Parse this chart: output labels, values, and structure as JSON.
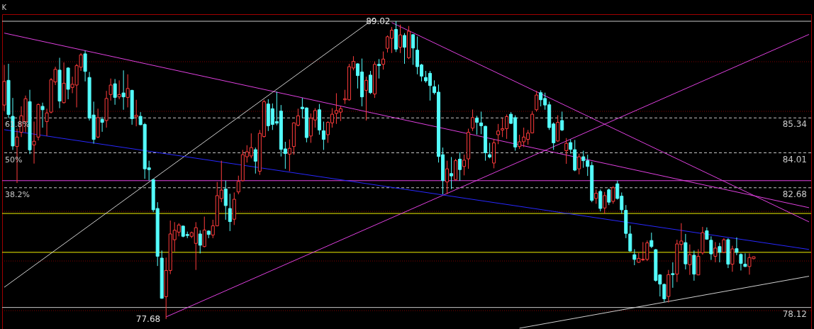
{
  "chart_data": {
    "type": "candlestick",
    "title": "K",
    "categories": [
      null,
      null,
      null,
      null,
      null,
      null,
      null,
      null,
      null,
      null,
      null,
      null,
      null,
      null,
      null,
      null,
      null,
      null,
      null,
      null,
      null,
      null,
      null,
      null,
      null,
      null,
      null,
      null,
      null,
      null,
      null,
      null,
      null,
      null,
      null,
      null,
      null,
      null,
      null,
      null,
      null,
      null,
      null,
      null,
      null,
      null,
      null,
      null,
      null,
      null,
      null,
      null,
      null,
      null,
      null,
      null,
      null,
      null,
      null,
      null,
      null,
      null,
      null,
      null,
      null,
      null,
      null,
      null,
      null,
      null,
      null,
      null,
      null,
      null,
      null,
      null,
      null,
      null,
      null,
      null,
      null,
      null,
      null,
      null,
      null,
      null,
      null,
      null,
      null,
      null,
      null,
      null,
      null,
      null,
      null,
      null,
      null,
      null,
      null,
      null,
      null,
      null,
      null,
      null,
      null,
      null,
      null,
      null,
      null,
      null,
      null,
      null,
      null,
      null,
      null,
      null,
      null,
      null,
      null,
      null,
      null,
      null,
      null,
      null,
      null,
      null,
      null,
      null,
      null,
      null,
      null,
      null,
      null,
      null,
      null,
      null,
      null,
      null,
      null,
      null,
      null,
      null,
      null,
      null,
      null,
      null,
      null,
      null,
      null,
      null,
      null,
      null,
      null,
      null,
      null,
      null,
      null,
      null,
      null,
      null,
      null,
      null,
      null,
      null,
      null,
      null,
      null,
      null,
      null,
      null,
      null,
      null,
      null,
      null,
      null,
      null,
      null,
      null,
      null,
      null,
      null,
      null,
      null,
      null,
      null,
      null,
      null,
      null,
      null,
      null
    ],
    "ylim": [
      77.3,
      89.29
    ],
    "ohlc": [
      [
        85.83,
        87.36,
        85.6,
        86.73
      ],
      [
        86.77,
        87.4,
        85.33,
        85.47
      ],
      [
        85.4,
        86.1,
        84.12,
        84.27
      ],
      [
        84.25,
        84.93,
        82.86,
        84.61
      ],
      [
        84.79,
        85.78,
        84.61,
        85.42
      ],
      [
        85.2,
        86.19,
        84.79,
        86.07
      ],
      [
        85.96,
        86.41,
        83.96,
        84.12
      ],
      [
        84.31,
        85.2,
        83.6,
        84.45
      ],
      [
        84.61,
        85.89,
        84.48,
        85.85
      ],
      [
        85.78,
        85.92,
        84.97,
        85.65
      ],
      [
        85.2,
        85.69,
        84.65,
        85.53
      ],
      [
        85.56,
        86.86,
        85.51,
        86.79
      ],
      [
        86.71,
        87.29,
        86.59,
        87.19
      ],
      [
        87.16,
        87.63,
        85.71,
        85.98
      ],
      [
        85.92,
        87.45,
        85.89,
        86.66
      ],
      [
        87.24,
        87.27,
        86.05,
        86.43
      ],
      [
        86.5,
        86.91,
        86.28,
        86.62
      ],
      [
        86.59,
        87.4,
        85.74,
        87.33
      ],
      [
        87.27,
        87.81,
        87.13,
        87.74
      ],
      [
        87.78,
        87.9,
        86.73,
        87.11
      ],
      [
        86.88,
        87.09,
        85.24,
        85.33
      ],
      [
        85.45,
        85.96,
        84.36,
        84.52
      ],
      [
        84.61,
        85.69,
        84.57,
        85.35
      ],
      [
        85.29,
        85.38,
        84.81,
        85.17
      ],
      [
        85.24,
        86.37,
        84.97,
        86.08
      ],
      [
        86.23,
        86.84,
        86.0,
        86.59
      ],
      [
        86.64,
        86.82,
        85.84,
        86.12
      ],
      [
        86.14,
        86.77,
        86.05,
        86.23
      ],
      [
        86.29,
        87.15,
        85.65,
        86.14
      ],
      [
        86.12,
        87.0,
        85.74,
        86.46
      ],
      [
        86.39,
        86.41,
        85.08,
        85.31
      ],
      [
        85.38,
        86.03,
        85.02,
        85.44
      ],
      [
        85.4,
        85.56,
        85.06,
        85.08
      ],
      [
        85.09,
        85.15,
        83.02,
        83.4
      ],
      [
        83.44,
        83.71,
        82.95,
        83.37
      ],
      [
        82.99,
        83.01,
        81.75,
        81.84
      ],
      [
        81.89,
        82.13,
        79.7,
        80.07
      ],
      [
        80.0,
        80.29,
        78.45,
        78.47
      ],
      [
        78.53,
        80.02,
        77.68,
        79.53
      ],
      [
        79.53,
        81.43,
        79.39,
        80.92
      ],
      [
        80.7,
        81.37,
        80.25,
        81.06
      ],
      [
        80.99,
        81.33,
        80.83,
        81.26
      ],
      [
        81.22,
        81.24,
        80.79,
        80.83
      ],
      [
        80.9,
        81.01,
        80.76,
        80.86
      ],
      [
        80.83,
        81.01,
        80.76,
        80.97
      ],
      [
        80.56,
        81.37,
        79.55,
        81.16
      ],
      [
        80.92,
        81.06,
        80.18,
        80.49
      ],
      [
        80.44,
        81.58,
        80.41,
        81.07
      ],
      [
        81.03,
        81.06,
        80.76,
        80.9
      ],
      [
        80.88,
        81.46,
        80.76,
        81.23
      ],
      [
        81.23,
        82.9,
        81.21,
        82.38
      ],
      [
        82.27,
        83.71,
        82.13,
        82.59
      ],
      [
        82.63,
        82.95,
        81.46,
        82.0
      ],
      [
        81.89,
        82.45,
        81.03,
        81.39
      ],
      [
        81.48,
        82.5,
        81.26,
        82.24
      ],
      [
        82.52,
        83.14,
        82.43,
        82.92
      ],
      [
        82.95,
        84.12,
        82.92,
        83.94
      ],
      [
        83.86,
        84.3,
        83.64,
        84.05
      ],
      [
        83.89,
        84.75,
        83.8,
        84.21
      ],
      [
        84.13,
        84.21,
        83.22,
        83.69
      ],
      [
        83.31,
        84.88,
        83.17,
        84.75
      ],
      [
        84.63,
        86.03,
        84.59,
        85.96
      ],
      [
        85.87,
        86.05,
        84.84,
        85.04
      ],
      [
        85.69,
        85.89,
        84.88,
        85.09
      ],
      [
        85.2,
        86.34,
        85.06,
        85.14
      ],
      [
        85.6,
        85.83,
        83.87,
        84.14
      ],
      [
        84.16,
        84.43,
        83.4,
        83.98
      ],
      [
        83.96,
        84.52,
        83.31,
        84.18
      ],
      [
        84.25,
        85.17,
        83.94,
        85.15
      ],
      [
        85.06,
        85.69,
        85.02,
        85.42
      ],
      [
        85.75,
        86.1,
        85.33,
        85.69
      ],
      [
        85.72,
        85.74,
        84.41,
        84.59
      ],
      [
        84.65,
        85.51,
        84.39,
        85.33
      ],
      [
        85.26,
        85.71,
        84.97,
        85.62
      ],
      [
        85.65,
        85.87,
        84.7,
        84.88
      ],
      [
        84.85,
        85.2,
        84.12,
        84.52
      ],
      [
        84.7,
        85.21,
        84.39,
        85.17
      ],
      [
        85.15,
        85.71,
        84.97,
        85.48
      ],
      [
        85.51,
        86.28,
        85.11,
        85.62
      ],
      [
        85.56,
        85.78,
        85.22,
        85.69
      ],
      [
        86.03,
        86.41,
        85.87,
        86.07
      ],
      [
        86.03,
        87.4,
        86.0,
        87.29
      ],
      [
        87.24,
        87.69,
        87.15,
        87.49
      ],
      [
        87.4,
        87.42,
        86.46,
        86.95
      ],
      [
        87.09,
        87.6,
        85.78,
        86.14
      ],
      [
        86.39,
        86.91,
        85.24,
        86.77
      ],
      [
        86.97,
        87.13,
        86.25,
        86.3
      ],
      [
        86.25,
        87.49,
        86.1,
        87.38
      ],
      [
        87.38,
        87.58,
        86.84,
        87.33
      ],
      [
        87.38,
        87.87,
        87.18,
        87.58
      ],
      [
        87.99,
        88.48,
        87.83,
        88.43
      ],
      [
        88.37,
        88.8,
        87.81,
        88.68
      ],
      [
        88.71,
        89.02,
        87.85,
        87.96
      ],
      [
        88.03,
        88.89,
        87.81,
        88.5
      ],
      [
        88.48,
        88.57,
        87.4,
        88.03
      ],
      [
        87.63,
        88.84,
        87.58,
        88.64
      ],
      [
        88.51,
        88.53,
        87.36,
        88.0
      ],
      [
        87.92,
        88.44,
        87.0,
        87.29
      ],
      [
        87.36,
        87.4,
        86.73,
        86.93
      ],
      [
        86.88,
        87.13,
        86.68,
        86.75
      ],
      [
        87.04,
        87.13,
        86.0,
        86.57
      ],
      [
        86.53,
        86.77,
        86.23,
        86.3
      ],
      [
        86.32,
        86.61,
        83.64,
        83.87
      ],
      [
        83.94,
        84.21,
        82.43,
        82.95
      ],
      [
        82.9,
        83.71,
        82.45,
        83.4
      ],
      [
        83.22,
        83.85,
        82.63,
        83.13
      ],
      [
        82.99,
        83.78,
        82.95,
        83.71
      ],
      [
        83.77,
        84.03,
        82.95,
        83.37
      ],
      [
        83.49,
        83.94,
        83.15,
        83.73
      ],
      [
        83.78,
        84.93,
        83.4,
        84.79
      ],
      [
        84.95,
        85.66,
        84.84,
        85.35
      ],
      [
        85.33,
        85.42,
        84.7,
        85.17
      ],
      [
        85.15,
        85.58,
        84.72,
        85.04
      ],
      [
        85.02,
        85.04,
        83.71,
        84.01
      ],
      [
        83.94,
        84.39,
        83.8,
        83.85
      ],
      [
        83.62,
        84.54,
        83.42,
        84.39
      ],
      [
        84.7,
        85.11,
        84.34,
        84.84
      ],
      [
        84.88,
        85.33,
        84.61,
        84.93
      ],
      [
        84.93,
        85.47,
        84.54,
        85.39
      ],
      [
        85.48,
        85.56,
        85.11,
        85.13
      ],
      [
        85.35,
        85.44,
        84.09,
        84.23
      ],
      [
        84.25,
        84.7,
        84.16,
        84.43
      ],
      [
        84.43,
        84.97,
        84.23,
        84.61
      ],
      [
        84.52,
        84.88,
        84.32,
        84.76
      ],
      [
        84.77,
        85.6,
        84.75,
        85.48
      ],
      [
        85.65,
        86.37,
        85.58,
        86.21
      ],
      [
        86.3,
        86.39,
        85.78,
        86.03
      ],
      [
        86.08,
        86.3,
        85.65,
        85.83
      ],
      [
        85.84,
        85.96,
        84.88,
        84.97
      ],
      [
        85.11,
        85.17,
        84.12,
        84.39
      ],
      [
        84.46,
        85.44,
        84.43,
        85.17
      ],
      [
        85.24,
        85.58,
        84.84,
        84.88
      ],
      [
        84.09,
        84.57,
        83.59,
        84.37
      ],
      [
        84.4,
        84.52,
        83.98,
        84.14
      ],
      [
        84.13,
        84.5,
        83.31,
        83.35
      ],
      [
        83.4,
        83.98,
        83.19,
        83.86
      ],
      [
        83.86,
        84.09,
        83.44,
        83.71
      ],
      [
        83.71,
        83.94,
        83.13,
        83.49
      ],
      [
        83.53,
        83.67,
        82.13,
        82.2
      ],
      [
        82.27,
        82.61,
        82.07,
        82.47
      ],
      [
        82.54,
        82.61,
        81.78,
        81.89
      ],
      [
        81.91,
        82.52,
        81.69,
        82.38
      ],
      [
        82.6,
        82.65,
        82.02,
        82.13
      ],
      [
        82.16,
        82.74,
        82.07,
        82.68
      ],
      [
        82.83,
        82.95,
        82.23,
        82.27
      ],
      [
        82.36,
        82.5,
        81.69,
        81.84
      ],
      [
        81.82,
        82.02,
        80.76,
        80.94
      ],
      [
        80.92,
        81.24,
        80.25,
        80.27
      ],
      [
        80.13,
        80.34,
        79.73,
        79.95
      ],
      [
        79.84,
        80.2,
        79.82,
        79.99
      ],
      [
        79.93,
        80.61,
        79.89,
        79.96
      ],
      [
        79.95,
        80.67,
        79.89,
        80.58
      ],
      [
        80.67,
        80.97,
        80.38,
        80.44
      ],
      [
        80.32,
        80.35,
        79.1,
        79.15
      ],
      [
        79.36,
        79.39,
        78.54,
        79.01
      ],
      [
        79.0,
        79.03,
        78.33,
        78.45
      ],
      [
        78.54,
        79.55,
        78.31,
        79.37
      ],
      [
        79.41,
        79.84,
        78.87,
        79.37
      ],
      [
        79.39,
        80.7,
        79.09,
        80.54
      ],
      [
        80.52,
        81.33,
        80.29,
        80.65
      ],
      [
        80.59,
        80.92,
        79.57,
        79.78
      ],
      [
        79.75,
        80.52,
        79.36,
        80.13
      ],
      [
        80.11,
        80.29,
        79.14,
        79.39
      ],
      [
        79.36,
        80.34,
        79.35,
        80.07
      ],
      [
        80.2,
        81.19,
        80.13,
        80.97
      ],
      [
        81.04,
        81.17,
        80.7,
        80.72
      ],
      [
        80.68,
        80.83,
        79.93,
        80.16
      ],
      [
        80.07,
        80.61,
        79.84,
        80.38
      ],
      [
        80.44,
        80.58,
        79.84,
        80.22
      ],
      [
        80.22,
        80.76,
        80.2,
        80.7
      ],
      [
        80.7,
        80.76,
        79.62,
        79.77
      ],
      [
        79.77,
        80.47,
        79.48,
        80.35
      ],
      [
        80.36,
        80.79,
        80.11,
        80.22
      ],
      [
        80.14,
        80.18,
        79.53,
        79.8
      ],
      [
        79.77,
        80.18,
        79.66,
        79.68
      ],
      [
        79.68,
        80.18,
        79.37,
        80.02
      ],
      [
        79.98,
        80.06,
        79.95,
        80.05
      ],
      null,
      null,
      null,
      null,
      null,
      null,
      null,
      null,
      null,
      null,
      null,
      null,
      null
    ],
    "colors": [
      "#ff3c3c",
      "#54fcfc",
      "#54fcfc",
      "#ff3c3c",
      "#ff3c3c",
      "#ff3c3c",
      "#54fcfc",
      "#ff3c3c",
      "#ff3c3c",
      "#54fcfc",
      "#ff3c3c",
      "#ff3c3c",
      "#ff3c3c",
      "#54fcfc",
      "#ff3c3c",
      "#54fcfc",
      "#ff3c3c",
      "#ff3c3c",
      "#ff3c3c",
      "#54fcfc",
      "#54fcfc",
      "#54fcfc",
      "#ff3c3c",
      "#54fcfc",
      "#ff3c3c",
      "#ff3c3c",
      "#54fcfc",
      "#ff3c3c",
      "#54fcfc",
      "#ff3c3c",
      "#54fcfc",
      "#ff3c3c",
      "#54fcfc",
      "#54fcfc",
      "#54fcfc",
      "#54fcfc",
      "#54fcfc",
      "#54fcfc",
      "#ff3c3c",
      "#ff3c3c",
      "#ff3c3c",
      "#ff3c3c",
      "#54fcfc",
      "#54fcfc",
      "#ff3c3c",
      "#ff3c3c",
      "#54fcfc",
      "#ff3c3c",
      "#54fcfc",
      "#ff3c3c",
      "#ff3c3c",
      "#ff3c3c",
      "#54fcfc",
      "#54fcfc",
      "#ff3c3c",
      "#ff3c3c",
      "#ff3c3c",
      "#ff3c3c",
      "#ff3c3c",
      "#54fcfc",
      "#ff3c3c",
      "#ff3c3c",
      "#54fcfc",
      "#54fcfc",
      "#54fcfc",
      "#54fcfc",
      "#54fcfc",
      "#ff3c3c",
      "#ff3c3c",
      "#ff3c3c",
      "#54fcfc",
      "#54fcfc",
      "#ff3c3c",
      "#ff3c3c",
      "#54fcfc",
      "#54fcfc",
      "#ff3c3c",
      "#ff3c3c",
      "#ff3c3c",
      "#ff3c3c",
      "#ff3c3c",
      "#ff3c3c",
      "#ff3c3c",
      "#54fcfc",
      "#54fcfc",
      "#ff3c3c",
      "#54fcfc",
      "#ff3c3c",
      "#54fcfc",
      "#ff3c3c",
      "#ff3c3c",
      "#ff3c3c",
      "#54fcfc",
      "#ff3c3c",
      "#54fcfc",
      "#ff3c3c",
      "#54fcfc",
      "#54fcfc",
      "#54fcfc",
      "#54fcfc",
      "#54fcfc",
      "#54fcfc",
      "#54fcfc",
      "#54fcfc",
      "#ff3c3c",
      "#54fcfc",
      "#ff3c3c",
      "#54fcfc",
      "#ff3c3c",
      "#ff3c3c",
      "#ff3c3c",
      "#54fcfc",
      "#54fcfc",
      "#54fcfc",
      "#54fcfc",
      "#ff3c3c",
      "#ff3c3c",
      "#ff3c3c",
      "#ff3c3c",
      "#54fcfc",
      "#54fcfc",
      "#ff3c3c",
      "#ff3c3c",
      "#ff3c3c",
      "#ff3c3c",
      "#ff3c3c",
      "#54fcfc",
      "#54fcfc",
      "#54fcfc",
      "#54fcfc",
      "#ff3c3c",
      "#54fcfc",
      "#ff3c3c",
      "#54fcfc",
      "#54fcfc",
      "#ff3c3c",
      "#54fcfc",
      "#54fcfc",
      "#54fcfc",
      "#ff3c3c",
      "#54fcfc",
      "#ff3c3c",
      "#54fcfc",
      "#ff3c3c",
      "#54fcfc",
      "#54fcfc",
      "#54fcfc",
      "#54fcfc",
      "#54fcfc",
      "#ff3c3c",
      "#ff3c3c",
      "#ff3c3c",
      "#54fcfc",
      "#54fcfc",
      "#54fcfc",
      "#54fcfc",
      "#ff3c3c",
      "#54fcfc",
      "#ff3c3c",
      "#ff3c3c",
      "#54fcfc",
      "#ff3c3c",
      "#54fcfc",
      "#ff3c3c",
      "#ff3c3c",
      "#54fcfc",
      "#54fcfc",
      "#ff3c3c",
      "#54fcfc",
      "#ff3c3c",
      "#54fcfc",
      "#ff3c3c",
      "#54fcfc",
      "#54fcfc",
      "#54fcfc",
      "#ff3c3c",
      "#ff3c3c",
      null,
      null,
      null,
      null,
      null,
      null,
      null,
      null,
      null,
      null,
      null,
      null,
      null
    ],
    "series": [
      {
        "type": "line",
        "color": "#e040e0",
        "values": [
          88.57,
          null,
          null,
          null,
          null,
          null,
          null,
          null,
          null,
          null,
          null,
          null,
          null,
          null,
          null,
          null,
          null,
          null,
          null,
          null,
          null,
          null,
          null,
          null,
          null,
          null,
          null,
          null,
          null,
          null,
          null,
          null,
          null,
          null,
          null,
          null,
          null,
          null,
          null,
          null,
          null,
          null,
          null,
          null,
          null,
          null,
          null,
          null,
          null,
          null,
          null,
          null,
          null,
          null,
          null,
          null,
          null,
          null,
          null,
          null,
          null,
          null,
          null,
          null,
          null,
          null,
          null,
          null,
          null,
          null,
          null,
          null,
          null,
          null,
          null,
          null,
          null,
          null,
          null,
          null,
          null,
          null,
          null,
          null,
          null,
          null,
          null,
          null,
          null,
          null,
          null,
          null,
          null,
          null,
          null,
          null,
          null,
          null,
          null,
          null,
          null,
          null,
          null,
          null,
          null,
          null,
          null,
          null,
          null,
          null,
          null,
          null,
          null,
          null,
          null,
          null,
          null,
          null,
          null,
          null,
          null,
          null,
          null,
          null,
          null,
          null,
          null,
          null,
          null,
          null,
          null,
          null,
          null,
          null,
          null,
          null,
          null,
          null,
          null,
          null,
          null,
          null,
          null,
          null,
          null,
          null,
          null,
          null,
          null,
          null,
          null,
          null,
          null,
          null,
          null,
          null,
          null,
          null,
          null,
          null,
          null,
          null,
          null,
          null,
          null,
          null,
          null,
          null,
          null,
          null,
          null,
          null,
          null,
          null,
          null,
          null,
          null,
          null,
          null,
          null,
          null,
          null,
          null,
          null,
          null,
          null,
          null,
          null,
          null,
          81.92
        ]
      },
      {
        "type": "line",
        "color": "#e040e0",
        "values": [
          null,
          null,
          null,
          null,
          null,
          null,
          null,
          null,
          null,
          null,
          null,
          null,
          null,
          null,
          null,
          null,
          null,
          null,
          null,
          null,
          null,
          null,
          null,
          null,
          null,
          null,
          null,
          null,
          null,
          null,
          null,
          null,
          null,
          null,
          null,
          null,
          null,
          null,
          null,
          null,
          null,
          null,
          null,
          null,
          null,
          null,
          null,
          null,
          null,
          null,
          null,
          null,
          null,
          null,
          null,
          null,
          null,
          null,
          null,
          null,
          null,
          null,
          null,
          null,
          null,
          null,
          null,
          null,
          null,
          null,
          null,
          null,
          null,
          null,
          null,
          null,
          null,
          null,
          null,
          null,
          null,
          null,
          null,
          null,
          null,
          null,
          null,
          null,
          null,
          null,
          null,
          88.97,
          null,
          null,
          null,
          null,
          null,
          null,
          null,
          null,
          null,
          null,
          null,
          null,
          null,
          null,
          null,
          null,
          null,
          null,
          null,
          null,
          null,
          null,
          null,
          null,
          null,
          null,
          null,
          null,
          null,
          null,
          null,
          null,
          null,
          null,
          null,
          null,
          null,
          null,
          null,
          null,
          null,
          null,
          null,
          null,
          null,
          null,
          null,
          null,
          null,
          null,
          null,
          null,
          null,
          null,
          null,
          null,
          null,
          null,
          null,
          null,
          null,
          null,
          null,
          null,
          null,
          null,
          null,
          null,
          null,
          null,
          null,
          null,
          null,
          null,
          null,
          null,
          null,
          null,
          null,
          null,
          null,
          null,
          null,
          null,
          null,
          null,
          null,
          null,
          null,
          null,
          null,
          null,
          null,
          null,
          null,
          null,
          null,
          81.38
        ]
      },
      {
        "type": "line",
        "color": "#e040e0",
        "values": [
          null,
          null,
          null,
          null,
          null,
          null,
          null,
          null,
          null,
          null,
          null,
          null,
          null,
          null,
          null,
          null,
          null,
          null,
          null,
          null,
          null,
          null,
          null,
          null,
          null,
          null,
          null,
          null,
          null,
          null,
          null,
          null,
          null,
          null,
          null,
          null,
          null,
          null,
          77.76,
          null,
          null,
          null,
          null,
          null,
          null,
          null,
          null,
          null,
          null,
          null,
          null,
          null,
          null,
          null,
          null,
          null,
          null,
          null,
          null,
          null,
          null,
          null,
          null,
          null,
          null,
          null,
          null,
          null,
          null,
          null,
          null,
          null,
          null,
          null,
          null,
          null,
          null,
          null,
          null,
          null,
          null,
          null,
          null,
          null,
          null,
          null,
          null,
          null,
          null,
          null,
          null,
          null,
          null,
          null,
          null,
          null,
          null,
          null,
          null,
          null,
          null,
          null,
          null,
          null,
          null,
          null,
          null,
          null,
          null,
          null,
          null,
          null,
          null,
          null,
          null,
          null,
          null,
          null,
          null,
          null,
          null,
          null,
          null,
          null,
          null,
          null,
          null,
          null,
          null,
          null,
          null,
          null,
          null,
          null,
          null,
          null,
          null,
          null,
          null,
          null,
          null,
          null,
          null,
          null,
          null,
          null,
          null,
          null,
          null,
          null,
          null,
          null,
          null,
          null,
          null,
          null,
          null,
          null,
          null,
          null,
          null,
          null,
          null,
          null,
          null,
          null,
          null,
          null,
          null,
          null,
          null,
          null,
          null,
          null,
          null,
          null,
          null,
          null,
          null,
          null,
          null,
          null,
          null,
          null,
          null,
          null,
          null,
          null,
          null,
          88.52
        ]
      },
      {
        "type": "line",
        "color": "#d0d0d0",
        "values": [
          78.89,
          null,
          null,
          null,
          null,
          null,
          null,
          null,
          null,
          null,
          null,
          null,
          null,
          null,
          null,
          null,
          null,
          null,
          null,
          null,
          null,
          null,
          null,
          null,
          null,
          null,
          null,
          null,
          null,
          null,
          null,
          null,
          null,
          null,
          null,
          null,
          null,
          null,
          null,
          null,
          null,
          null,
          null,
          null,
          null,
          null,
          null,
          null,
          null,
          null,
          null,
          null,
          null,
          null,
          null,
          null,
          null,
          null,
          null,
          null,
          null,
          null,
          null,
          null,
          null,
          null,
          null,
          null,
          null,
          null,
          null,
          null,
          null,
          null,
          null,
          null,
          null,
          null,
          null,
          null,
          null,
          null,
          null,
          null,
          null,
          null,
          null,
          89.14,
          null,
          null,
          null,
          null,
          null,
          null,
          null,
          null,
          null,
          null,
          null,
          null,
          null,
          null,
          null,
          null,
          null,
          null,
          null,
          null,
          null,
          null,
          null,
          null,
          null,
          null,
          null,
          null,
          null,
          null,
          null,
          null,
          null,
          null,
          null,
          null,
          null,
          null,
          null,
          null,
          null,
          null,
          null,
          null,
          null,
          null,
          null,
          null,
          null,
          null,
          null,
          null,
          null,
          null,
          null,
          null,
          null,
          null,
          null,
          null,
          null,
          null,
          null,
          null,
          null,
          null,
          null,
          null,
          null,
          null,
          null,
          null,
          null,
          null,
          null,
          null,
          null,
          null,
          null,
          null,
          null,
          null,
          null,
          null,
          null,
          null,
          null,
          null,
          null,
          null,
          null,
          null,
          null,
          null,
          null,
          null,
          null,
          null,
          null,
          null,
          null,
          null
        ]
      },
      {
        "type": "line",
        "color": "#2828ff",
        "values": [
          84.89,
          null,
          null,
          null,
          null,
          null,
          null,
          null,
          null,
          null,
          null,
          null,
          null,
          null,
          null,
          null,
          null,
          null,
          null,
          null,
          null,
          null,
          null,
          null,
          null,
          null,
          null,
          null,
          null,
          null,
          null,
          null,
          null,
          null,
          null,
          null,
          null,
          null,
          null,
          null,
          null,
          null,
          null,
          null,
          null,
          null,
          null,
          null,
          null,
          null,
          null,
          null,
          null,
          null,
          null,
          null,
          null,
          null,
          null,
          null,
          null,
          null,
          null,
          null,
          null,
          null,
          null,
          null,
          null,
          null,
          null,
          null,
          null,
          null,
          null,
          null,
          null,
          null,
          null,
          null,
          null,
          null,
          null,
          null,
          null,
          null,
          null,
          null,
          null,
          null,
          null,
          null,
          null,
          null,
          null,
          null,
          null,
          null,
          null,
          null,
          null,
          null,
          null,
          null,
          null,
          null,
          null,
          null,
          null,
          null,
          null,
          null,
          null,
          null,
          null,
          null,
          null,
          null,
          null,
          null,
          null,
          null,
          null,
          null,
          null,
          null,
          null,
          null,
          null,
          null,
          null,
          null,
          null,
          null,
          null,
          null,
          null,
          null,
          null,
          null,
          null,
          null,
          null,
          null,
          null,
          null,
          null,
          null,
          null,
          null,
          null,
          null,
          null,
          null,
          null,
          null,
          null,
          null,
          null,
          null,
          null,
          null,
          null,
          null,
          null,
          null,
          null,
          null,
          null,
          null,
          null,
          null,
          null,
          null,
          null,
          null,
          null,
          null,
          null,
          null,
          null,
          null,
          null,
          null,
          null,
          null,
          null,
          null,
          null,
          80.33
        ]
      },
      {
        "type": "line",
        "color": "#d0d0d0",
        "values": [
          null,
          null,
          null,
          null,
          null,
          null,
          null,
          null,
          null,
          null,
          null,
          null,
          null,
          null,
          null,
          null,
          null,
          null,
          null,
          null,
          null,
          null,
          null,
          null,
          null,
          null,
          null,
          null,
          null,
          null,
          null,
          null,
          null,
          null,
          null,
          null,
          null,
          null,
          null,
          null,
          null,
          null,
          null,
          null,
          null,
          null,
          null,
          null,
          null,
          null,
          null,
          null,
          null,
          null,
          null,
          null,
          null,
          null,
          null,
          null,
          null,
          null,
          null,
          null,
          null,
          null,
          null,
          null,
          null,
          null,
          null,
          null,
          null,
          null,
          null,
          null,
          null,
          null,
          null,
          null,
          null,
          null,
          null,
          null,
          null,
          null,
          null,
          null,
          null,
          null,
          null,
          null,
          null,
          null,
          null,
          null,
          null,
          null,
          null,
          null,
          null,
          null,
          null,
          null,
          null,
          null,
          null,
          null,
          null,
          null,
          null,
          null,
          null,
          null,
          null,
          null,
          null,
          null,
          null,
          null,
          null,
          77.33,
          null,
          null,
          null,
          null,
          null,
          null,
          null,
          null,
          null,
          null,
          null,
          null,
          null,
          null,
          null,
          null,
          null,
          null,
          null,
          null,
          null,
          null,
          null,
          null,
          null,
          null,
          null,
          null,
          null,
          null,
          null,
          null,
          null,
          null,
          null,
          null,
          null,
          null,
          null,
          null,
          null,
          null,
          null,
          null,
          null,
          null,
          null,
          null,
          null,
          null,
          null,
          null,
          null,
          null,
          null,
          null,
          null,
          null,
          null,
          null,
          null,
          null,
          null,
          null,
          null,
          null,
          null,
          79.31
        ]
      }
    ],
    "ref_lines": [
      {
        "axis": "y",
        "value": 87.48,
        "color": "#800000",
        "line_style": "dotted"
      },
      {
        "axis": "y",
        "value": 85.59,
        "color": "#800000",
        "line_style": "dotted"
      },
      {
        "axis": "y",
        "value": 81.78,
        "color": "#800000",
        "line_style": "dotted"
      },
      {
        "axis": "y",
        "value": 79.89,
        "color": "#800000",
        "line_style": "dotted"
      },
      {
        "axis": "y",
        "value": 78.0,
        "color": "#800000",
        "line_style": "dotted"
      },
      {
        "axis": "y",
        "value": 89.02,
        "color": "#c8c8c8"
      },
      {
        "axis": "y",
        "value": 85.34,
        "label": "85.34",
        "color": "#c8c8c8",
        "line_style": "dashed"
      },
      {
        "axis": "y",
        "value": 84.01,
        "label": "84.01",
        "color": "#c8c8c8",
        "line_style": "dashed"
      },
      {
        "axis": "y",
        "value": 82.68,
        "label": "82.68",
        "color": "#c8c8c8",
        "line_style": "dashed"
      },
      {
        "axis": "y",
        "value": 82.95,
        "color": "#e040e0"
      },
      {
        "axis": "y",
        "value": 81.7,
        "color": "#f0f000"
      },
      {
        "axis": "y",
        "value": 80.22,
        "color": "#f0f000"
      },
      {
        "axis": "y",
        "value": 78.12,
        "label": "78.12",
        "color": "#c8c8c8"
      }
    ],
    "annotations": [
      {
        "text": "61.8%",
        "y": 85.34
      },
      {
        "text": "50%",
        "y": 84.01
      },
      {
        "text": "38.2%",
        "y": 82.68
      },
      {
        "text": "89.02",
        "y": 89.02
      },
      "77.68"
    ]
  }
}
